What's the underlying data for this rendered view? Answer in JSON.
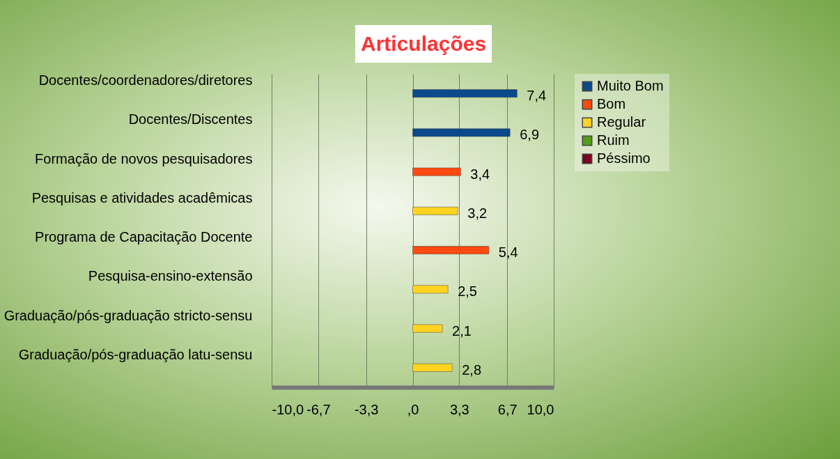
{
  "chart_data": {
    "type": "bar",
    "orientation": "horizontal",
    "title": "Articulações",
    "categories": [
      "Docentes/coordenadores/diretores",
      "Docentes/Discentes",
      "Formação de novos pesquisadores",
      "Pesquisas e atividades acadêmicas",
      "Programa de Capacitação Docente",
      "Pesquisa-ensino-extensão",
      "Graduação/pós-graduação stricto-sensu",
      "Graduação/pós-graduação latu-sensu"
    ],
    "series": [
      {
        "name": "Muito Bom",
        "color": "#0b4a8a",
        "values": [
          7.4,
          6.9,
          null,
          null,
          null,
          null,
          null,
          null
        ],
        "value_labels": [
          "7,4",
          "6,9",
          null,
          null,
          null,
          null,
          null,
          null
        ]
      },
      {
        "name": "Bom",
        "color": "#ff4a10",
        "values": [
          null,
          null,
          3.4,
          null,
          5.4,
          null,
          null,
          null
        ],
        "value_labels": [
          null,
          null,
          "3,4",
          null,
          "5,4",
          null,
          null,
          null
        ]
      },
      {
        "name": "Regular",
        "color": "#ffd320",
        "values": [
          null,
          null,
          null,
          3.2,
          null,
          2.5,
          2.1,
          2.8
        ],
        "value_labels": [
          null,
          null,
          null,
          "3,2",
          null,
          "2,5",
          "2,1",
          "2,8"
        ]
      },
      {
        "name": "Ruim",
        "color": "#579d1c",
        "values": [
          null,
          null,
          null,
          null,
          null,
          null,
          null,
          null
        ]
      },
      {
        "name": "Péssimo",
        "color": "#7e0021",
        "values": [
          null,
          null,
          null,
          null,
          null,
          null,
          null,
          null
        ]
      }
    ],
    "xlim": [
      -10,
      10
    ],
    "xticks": [
      {
        "value": -10,
        "label": "-10,0"
      },
      {
        "value": -6.7,
        "label": "-6,7"
      },
      {
        "value": -3.3,
        "label": "-3,3"
      },
      {
        "value": 0,
        "label": ",0"
      },
      {
        "value": 3.3,
        "label": "3,3"
      },
      {
        "value": 6.7,
        "label": "6,7"
      },
      {
        "value": 10,
        "label": "10,0"
      }
    ],
    "grid": "x",
    "legend": "right"
  }
}
